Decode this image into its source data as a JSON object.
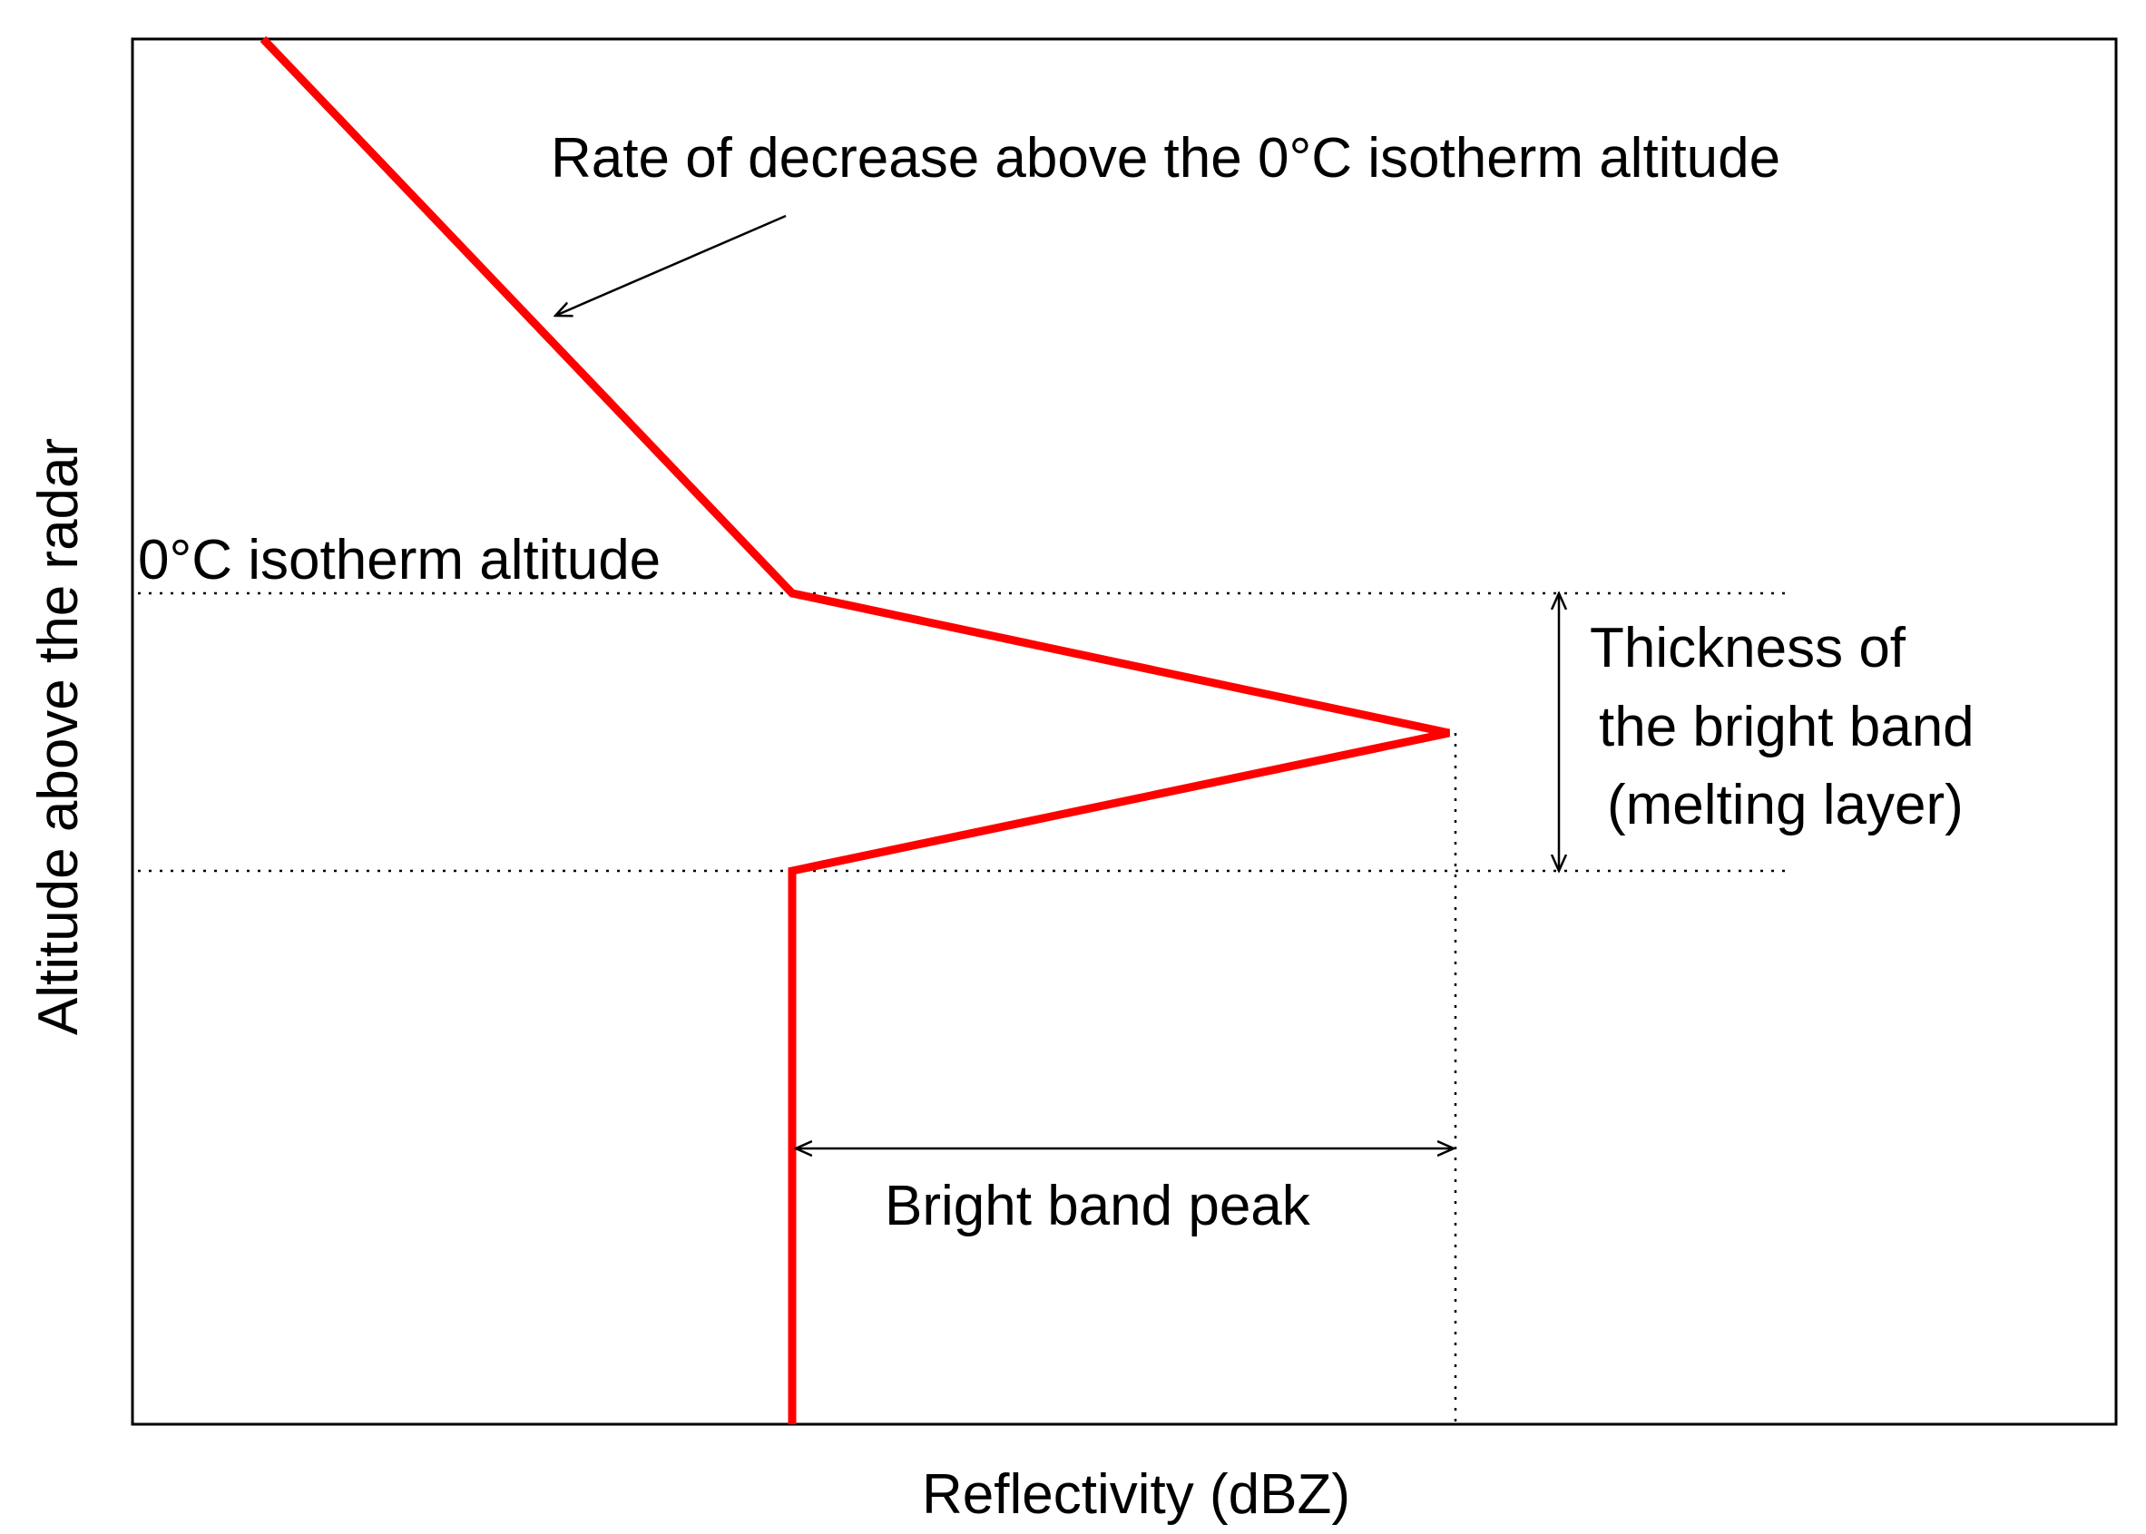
{
  "colors": {
    "profile_line": "#ff0000",
    "frame": "#000000",
    "guide_lines": "#000000",
    "background": "#ffffff"
  },
  "axes": {
    "x_label": "Reflectivity (dBZ)",
    "y_label": "Altitude above the radar"
  },
  "annotations": {
    "rate_of_decrease": "Rate of decrease above the 0°C isotherm altitude",
    "isotherm_altitude": "0°C isotherm altitude",
    "thickness_line1": "Thickness of",
    "thickness_line2": "the bright band",
    "thickness_line3": "(melting layer)",
    "bright_band_peak": "Bright band peak"
  }
}
